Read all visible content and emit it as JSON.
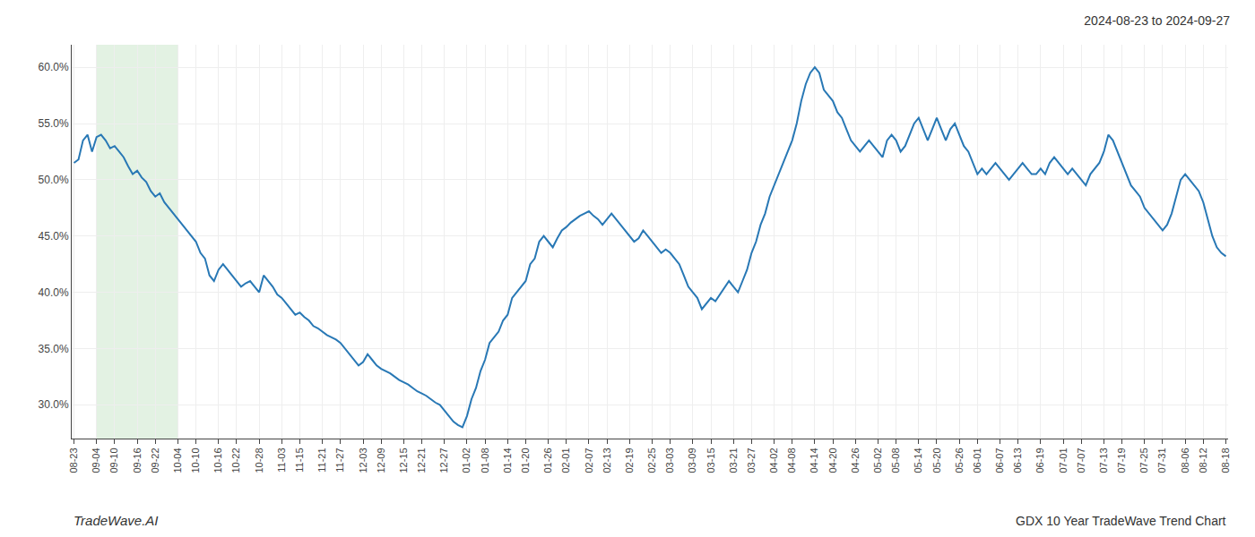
{
  "chart_data": {
    "type": "line",
    "title": "2024-08-23 to 2024-09-27",
    "annotations": [
      "TradeWave.AI",
      "GDX 10 Year TradeWave Trend Chart"
    ],
    "categories": [
      "08-23",
      null,
      null,
      null,
      null,
      "09-04",
      null,
      null,
      null,
      "09-10",
      null,
      null,
      null,
      null,
      "09-16",
      null,
      null,
      null,
      "09-22",
      null,
      null,
      null,
      null,
      "10-04",
      null,
      null,
      null,
      "10-10",
      null,
      null,
      null,
      null,
      "10-16",
      null,
      null,
      null,
      "10-22",
      null,
      null,
      null,
      null,
      "10-28",
      null,
      null,
      null,
      null,
      "11-03",
      null,
      null,
      null,
      "11-15",
      null,
      null,
      null,
      null,
      "11-21",
      null,
      null,
      null,
      "11-27",
      null,
      null,
      null,
      null,
      "12-03",
      null,
      null,
      null,
      "12-09",
      null,
      null,
      null,
      null,
      "12-15",
      null,
      null,
      null,
      "12-21",
      null,
      null,
      null,
      null,
      "12-27",
      null,
      null,
      null,
      null,
      "01-02",
      null,
      null,
      null,
      "01-08",
      null,
      null,
      null,
      null,
      "01-14",
      null,
      null,
      null,
      "01-20",
      null,
      null,
      null,
      null,
      "01-26",
      null,
      null,
      null,
      "02-01",
      null,
      null,
      null,
      null,
      "02-07",
      null,
      null,
      null,
      "02-13",
      null,
      null,
      null,
      null,
      "02-19",
      null,
      null,
      null,
      null,
      "02-25",
      null,
      null,
      null,
      "03-03",
      null,
      null,
      null,
      null,
      "03-09",
      null,
      null,
      null,
      "03-15",
      null,
      null,
      null,
      null,
      "03-21",
      null,
      null,
      null,
      "03-27",
      null,
      null,
      null,
      null,
      "04-02",
      null,
      null,
      null,
      "04-08",
      null,
      null,
      null,
      null,
      "04-14",
      null,
      null,
      null,
      "04-20",
      null,
      null,
      null,
      null,
      "04-26",
      null,
      null,
      null,
      null,
      "05-02",
      null,
      null,
      null,
      "05-08",
      null,
      null,
      null,
      null,
      "05-14",
      null,
      null,
      null,
      "05-20",
      null,
      null,
      null,
      null,
      "05-26",
      null,
      null,
      null,
      "06-01",
      null,
      null,
      null,
      null,
      "06-07",
      null,
      null,
      null,
      "06-13",
      null,
      null,
      null,
      null,
      "06-19",
      null,
      null,
      null,
      null,
      "07-01",
      null,
      null,
      null,
      "07-07",
      null,
      null,
      null,
      null,
      "07-13",
      null,
      null,
      null,
      "07-19",
      null,
      null,
      null,
      null,
      "07-25",
      null,
      null,
      null,
      "07-31",
      null,
      null,
      null,
      null,
      "08-06",
      null,
      null,
      null,
      "08-12",
      null,
      null,
      null,
      null,
      "08-18"
    ],
    "values": [
      51.5,
      51.8,
      53.5,
      54.0,
      52.5,
      53.8,
      54.0,
      53.5,
      52.8,
      53.0,
      52.5,
      52.0,
      51.2,
      50.5,
      50.8,
      50.2,
      49.8,
      49.0,
      48.5,
      48.8,
      48.0,
      47.5,
      47.0,
      46.5,
      46.0,
      45.5,
      45.0,
      44.5,
      43.5,
      43.0,
      41.5,
      41.0,
      42.0,
      42.5,
      42.0,
      41.5,
      41.0,
      40.5,
      40.8,
      41.0,
      40.5,
      40.0,
      41.5,
      41.0,
      40.5,
      39.8,
      39.5,
      39.0,
      38.5,
      38.0,
      38.2,
      37.8,
      37.5,
      37.0,
      36.8,
      36.5,
      36.2,
      36.0,
      35.8,
      35.5,
      35.0,
      34.5,
      34.0,
      33.5,
      33.8,
      34.5,
      34.0,
      33.5,
      33.2,
      33.0,
      32.8,
      32.5,
      32.2,
      32.0,
      31.8,
      31.5,
      31.2,
      31.0,
      30.8,
      30.5,
      30.2,
      30.0,
      29.5,
      29.0,
      28.5,
      28.2,
      28.0,
      29.0,
      30.5,
      31.5,
      33.0,
      34.0,
      35.5,
      36.0,
      36.5,
      37.5,
      38.0,
      39.5,
      40.0,
      40.5,
      41.0,
      42.5,
      43.0,
      44.5,
      45.0,
      44.5,
      44.0,
      44.8,
      45.5,
      45.8,
      46.2,
      46.5,
      46.8,
      47.0,
      47.2,
      46.8,
      46.5,
      46.0,
      46.5,
      47.0,
      46.5,
      46.0,
      45.5,
      45.0,
      44.5,
      44.8,
      45.5,
      45.0,
      44.5,
      44.0,
      43.5,
      43.8,
      43.5,
      43.0,
      42.5,
      41.5,
      40.5,
      40.0,
      39.5,
      38.5,
      39.0,
      39.5,
      39.2,
      39.8,
      40.5,
      41.0,
      40.5,
      40.0,
      41.0,
      42.0,
      43.5,
      44.5,
      46.0,
      47.0,
      48.5,
      49.5,
      50.5,
      51.5,
      52.5,
      53.5,
      55.0,
      57.0,
      58.5,
      59.5,
      60.0,
      59.5,
      58.0,
      57.5,
      57.0,
      56.0,
      55.5,
      54.5,
      53.5,
      53.0,
      52.5,
      53.0,
      53.5,
      53.0,
      52.5,
      52.0,
      53.5,
      54.0,
      53.5,
      52.5,
      53.0,
      54.0,
      55.0,
      55.5,
      54.5,
      53.5,
      54.5,
      55.5,
      54.5,
      53.5,
      54.5,
      55.0,
      54.0,
      53.0,
      52.5,
      51.5,
      50.5,
      51.0,
      50.5,
      51.0,
      51.5,
      51.0,
      50.5,
      50.0,
      50.5,
      51.0,
      51.5,
      51.0,
      50.5,
      50.5,
      51.0,
      50.5,
      51.5,
      52.0,
      51.5,
      51.0,
      50.5,
      51.0,
      50.5,
      50.0,
      49.5,
      50.5,
      51.0,
      51.5,
      52.5,
      54.0,
      53.5,
      52.5,
      51.5,
      50.5,
      49.5,
      49.0,
      48.5,
      47.5,
      47.0,
      46.5,
      46.0,
      45.5,
      46.0,
      47.0,
      48.5,
      50.0,
      50.5,
      50.0,
      49.5,
      49.0,
      48.0,
      46.5,
      45.0,
      44.0,
      43.5,
      43.2
    ],
    "color": "#2878b5",
    "ylim": [
      27.0,
      62.0
    ],
    "yticks": [
      {
        "value": 30.0,
        "label": "30.0%"
      },
      {
        "value": 35.0,
        "label": "35.0%"
      },
      {
        "value": 40.0,
        "label": "40.0%"
      },
      {
        "value": 45.0,
        "label": "45.0%"
      },
      {
        "value": 50.0,
        "label": "50.0%"
      },
      {
        "value": 55.0,
        "label": "55.0%"
      },
      {
        "value": 60.0,
        "label": "60.0%"
      }
    ],
    "grid": true,
    "shaded_region": {
      "start": "09-04",
      "end": "10-04",
      "color": "#c8e6c8"
    }
  }
}
